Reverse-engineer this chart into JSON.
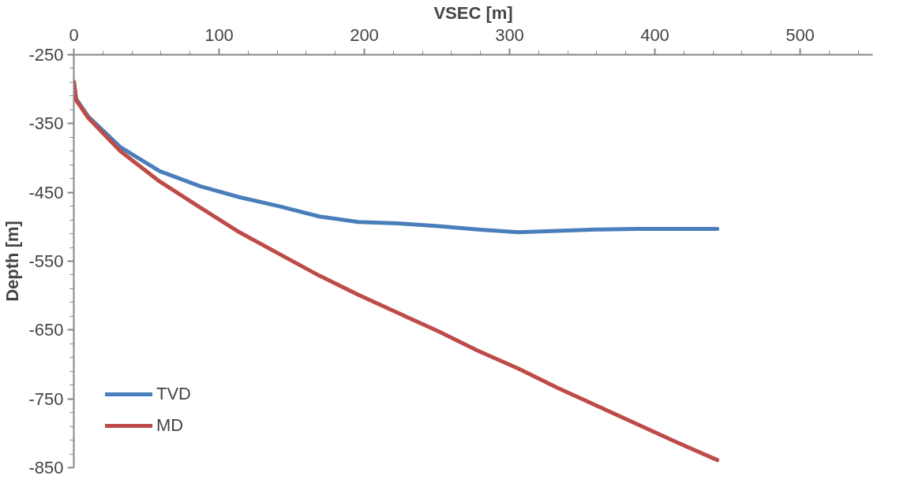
{
  "chart_data": {
    "type": "line",
    "xlabel": "VSEC [m]",
    "ylabel": "Depth [m]",
    "xlim": [
      0,
      550
    ],
    "ylim": [
      -850,
      -250
    ],
    "xticks": [
      0,
      {
        "value": 20,
        "label": null
      },
      {
        "value": 40,
        "label": null
      },
      {
        "value": 60,
        "label": null
      },
      {
        "value": 80,
        "label": null
      },
      100,
      {
        "value": 120,
        "label": null
      },
      {
        "value": 140,
        "label": null
      },
      {
        "value": 160,
        "label": null
      },
      {
        "value": 180,
        "label": null
      },
      200,
      {
        "value": 220,
        "label": null
      },
      {
        "value": 240,
        "label": null
      },
      {
        "value": 260,
        "label": null
      },
      {
        "value": 280,
        "label": null
      },
      300,
      {
        "value": 320,
        "label": null
      },
      {
        "value": 340,
        "label": null
      },
      {
        "value": 360,
        "label": null
      },
      {
        "value": 380,
        "label": null
      },
      400,
      {
        "value": 420,
        "label": null
      },
      {
        "value": 440,
        "label": null
      },
      {
        "value": 460,
        "label": null
      },
      {
        "value": 480,
        "label": null
      },
      500,
      {
        "value": 520,
        "label": null
      },
      {
        "value": 540,
        "label": null
      }
    ],
    "yticks": [
      -250,
      {
        "value": -270,
        "label": null
      },
      {
        "value": -290,
        "label": null
      },
      {
        "value": -310,
        "label": null
      },
      {
        "value": -330,
        "label": null
      },
      -350,
      {
        "value": -370,
        "label": null
      },
      {
        "value": -390,
        "label": null
      },
      {
        "value": -410,
        "label": null
      },
      {
        "value": -430,
        "label": null
      },
      -450,
      {
        "value": -470,
        "label": null
      },
      {
        "value": -490,
        "label": null
      },
      {
        "value": -510,
        "label": null
      },
      {
        "value": -530,
        "label": null
      },
      -550,
      {
        "value": -570,
        "label": null
      },
      {
        "value": -590,
        "label": null
      },
      {
        "value": -610,
        "label": null
      },
      {
        "value": -630,
        "label": null
      },
      -650,
      {
        "value": -670,
        "label": null
      },
      {
        "value": -690,
        "label": null
      },
      {
        "value": -710,
        "label": null
      },
      {
        "value": -730,
        "label": null
      },
      -750,
      {
        "value": -770,
        "label": null
      },
      {
        "value": -790,
        "label": null
      },
      {
        "value": -810,
        "label": null
      },
      {
        "value": -830,
        "label": null
      },
      -850
    ],
    "grid": false,
    "legend": "bottom left",
    "line_style": "solid",
    "x": [
      0,
      1.6,
      10,
      32,
      59,
      87,
      114,
      141,
      169,
      196,
      223,
      251,
      278,
      306,
      333,
      360,
      388,
      415,
      443
    ],
    "series": [
      {
        "name": "TVD",
        "color": "#4a7ebb",
        "values": [
          -289,
          -314,
          -340,
          -384,
          -419,
          -441,
          -457,
          -470,
          -485,
          -493,
          -495,
          -499,
          -504,
          -508,
          -506,
          -504,
          -503,
          -503,
          -503
        ]
      },
      {
        "name": "MD",
        "color": "#be4b48",
        "values": [
          -289,
          -316,
          -342,
          -390,
          -434,
          -472,
          -508,
          -539,
          -571,
          -599,
          -625,
          -652,
          -680,
          -706,
          -734,
          -760,
          -787,
          -813,
          -839
        ]
      }
    ]
  }
}
